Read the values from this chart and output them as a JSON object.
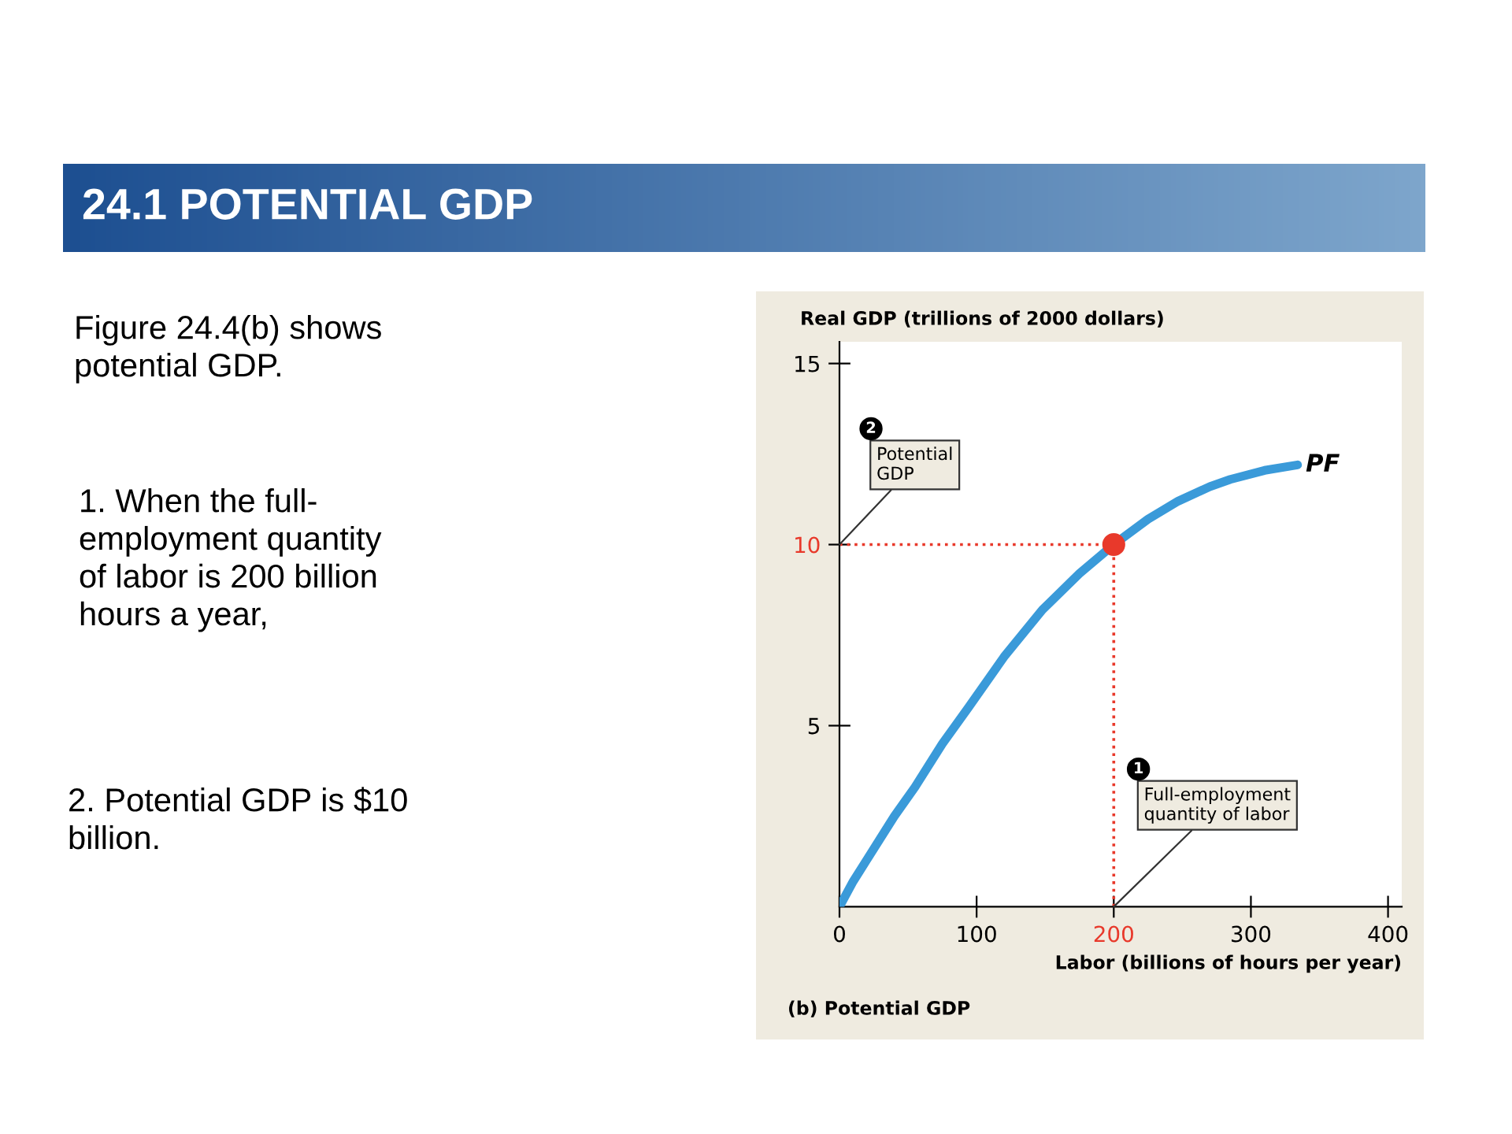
{
  "chart_data": {
    "type": "line",
    "title": "24.1 POTENTIAL GDP",
    "subtitle": "(b) Potential GDP",
    "xlabel": "Labor (billions of hours per year)",
    "ylabel": "Real GDP (trillions of 2000 dollars)",
    "x": [
      0,
      10,
      20,
      40,
      55,
      75,
      94,
      120,
      148,
      175,
      200,
      225,
      247,
      270,
      285,
      310,
      334
    ],
    "series": [
      {
        "name": "PF",
        "color": "#3a9ad9",
        "values": [
          0,
          0.7,
          1.3,
          2.5,
          3.3,
          4.5,
          5.5,
          6.9,
          8.2,
          9.2,
          10,
          10.7,
          11.2,
          11.6,
          11.8,
          12.05,
          12.2
        ]
      },
      {
        "type": "scatter",
        "marker": "circle",
        "color": "#e8392b",
        "x": [
          200
        ],
        "values": [
          10
        ]
      }
    ],
    "xlim": [
      0,
      410
    ],
    "ylim": [
      0,
      15.6
    ],
    "xticks": [
      0,
      100,
      200,
      300,
      400
    ],
    "yticks": [
      5,
      10,
      15
    ],
    "ref_lines": [
      {
        "axis": "x",
        "value": 200,
        "color": "#e8392b",
        "line_style": "dotted"
      },
      {
        "axis": "y",
        "value": 10,
        "color": "#e8392b",
        "line_style": "dotted"
      }
    ],
    "annotations": [
      "Figure 24.4(b) shows\npotential GDP.",
      "1. When the full-\nemployment quantity\nof labor is 200 billion\nhours a year,",
      "2. Potential GDP is $10\nbillion.",
      "2",
      {
        "text": "Potential\nGDP",
        "x": 0,
        "y": 10
      },
      "1",
      {
        "text": "Full-employment\nquantity of labor",
        "x": 200,
        "y": 0
      }
    ],
    "grid": false,
    "marker": "none",
    "line_style": "solid"
  }
}
